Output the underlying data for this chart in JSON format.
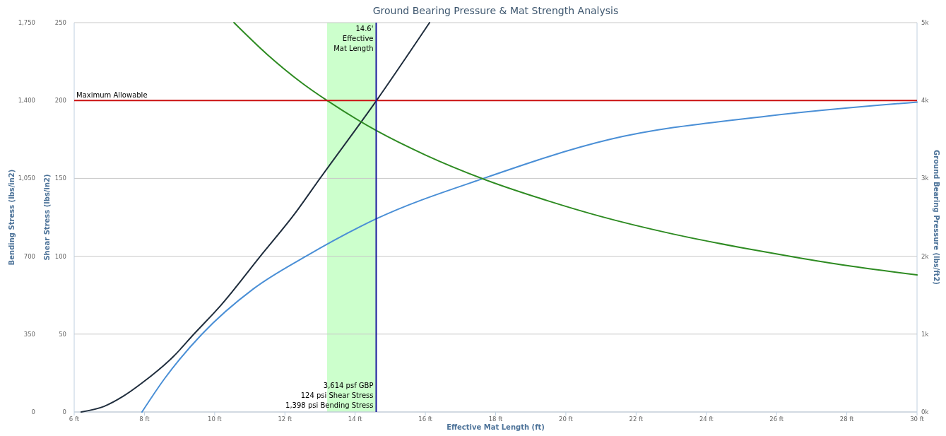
{
  "chart_data": {
    "type": "line",
    "title": "Ground Bearing Pressure & Mat Strength Analysis",
    "xlabel": "Effective Mat Length (ft)",
    "ylabel": "Bending Stress (lbs/in2)",
    "y2label": "Shear Stress (lbs/in2)",
    "y3label": "Ground Bearing Pressure (lbs/ft2)",
    "xlim": [
      6,
      30
    ],
    "xticks": [
      {
        "value": 6,
        "label": "6 ft"
      },
      {
        "value": 8,
        "label": "8 ft"
      },
      {
        "value": 10,
        "label": "10 ft"
      },
      {
        "value": 12,
        "label": "12 ft"
      },
      {
        "value": 14,
        "label": "14 ft"
      },
      {
        "value": 16,
        "label": "16 ft"
      },
      {
        "value": 18,
        "label": "18 ft"
      },
      {
        "value": 20,
        "label": "20 ft"
      },
      {
        "value": 22,
        "label": "22 ft"
      },
      {
        "value": 24,
        "label": "24 ft"
      },
      {
        "value": 26,
        "label": "26 ft"
      },
      {
        "value": 28,
        "label": "28 ft"
      },
      {
        "value": 30,
        "label": "30 ft"
      }
    ],
    "ylim": [
      0,
      1750
    ],
    "yticks": [
      0,
      350,
      700,
      {
        "value": 1050,
        "label": "1,050"
      },
      {
        "value": 1400,
        "label": "1,400"
      },
      {
        "value": 1750,
        "label": "1,750"
      }
    ],
    "y2lim": [
      0,
      250
    ],
    "y2ticks": [
      0,
      50,
      100,
      150,
      200,
      250
    ],
    "y3lim": [
      0,
      5000
    ],
    "y3ticks": [
      {
        "value": 0,
        "label": "0k"
      },
      {
        "value": 1000,
        "label": "1k"
      },
      {
        "value": 2000,
        "label": "2k"
      },
      {
        "value": 3000,
        "label": "3k"
      },
      {
        "value": 4000,
        "label": "4k"
      },
      {
        "value": 5000,
        "label": "5k"
      }
    ],
    "grid": "y",
    "marker": "none",
    "line_style": "solid",
    "series": [
      {
        "color": "#1f2d3d",
        "axis": "y",
        "x": [
          6.2,
          6.85,
          7.39,
          7.93,
          8.83,
          9.41,
          10.18,
          11.3,
          12.3,
          13.0,
          14.6,
          16.12
        ],
        "values": [
          0,
          25,
          70,
          130,
          250,
          350,
          480,
          700,
          895,
          1050,
          1398,
          1750
        ]
      },
      {
        "color": "#4a8fd6",
        "axis": "y2",
        "x": [
          7.93,
          8.56,
          9.64,
          11.1,
          12.6,
          14.6,
          17.66,
          21.25,
          25.75,
          30
        ],
        "values": [
          0,
          21,
          50,
          79,
          100,
          124,
          150,
          175,
          190,
          199
        ]
      },
      {
        "color": "#2e8b22",
        "axis": "y3",
        "x": [
          10.55,
          11.5,
          12.5,
          13.2,
          14.6,
          16,
          17.66,
          19.5,
          21,
          23,
          25,
          26.5,
          28,
          30
        ],
        "values": [
          5000,
          4590,
          4220,
          4000,
          3614,
          3300,
          2990,
          2710,
          2510,
          2290,
          2110,
          1990,
          1880,
          1760
        ]
      }
    ],
    "ref_lines": [
      {
        "axis": "y",
        "value": 1400,
        "label": "Maximum Allowable",
        "color": "#cc1111"
      },
      {
        "axis": "x",
        "value": 14.6,
        "label": "14.6'\nEffective\nMat Length",
        "color": "#1a1a9c"
      }
    ],
    "bands": [
      {
        "axis": "x",
        "from": 13.2,
        "to": 14.6,
        "color": "#ccffcc"
      }
    ],
    "annotations": [
      "3,614 psf GBP",
      "124 psi Shear Stress",
      "1,398 psi Bending Stress"
    ]
  }
}
